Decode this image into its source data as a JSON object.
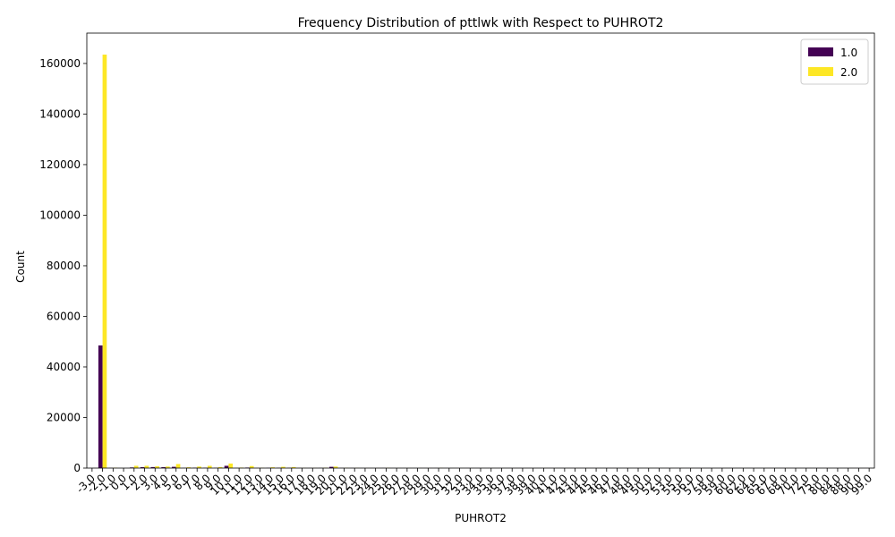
{
  "chart_data": {
    "type": "bar",
    "title": "Frequency Distribution of pttlwk with Respect to PUHROT2",
    "xlabel": "PUHROT2",
    "ylabel": "Count",
    "ylim": [
      0,
      172000
    ],
    "yticks": [
      0,
      20000,
      40000,
      60000,
      80000,
      100000,
      120000,
      140000,
      160000
    ],
    "legend_position": "upper-right",
    "categories": [
      "-3.0",
      "-2.0",
      "-1.0",
      "0.0",
      "1.0",
      "2.0",
      "3.0",
      "4.0",
      "5.0",
      "6.0",
      "7.0",
      "8.0",
      "9.0",
      "10.0",
      "11.0",
      "12.0",
      "13.0",
      "14.0",
      "15.0",
      "16.0",
      "17.0",
      "18.0",
      "19.0",
      "20.0",
      "21.0",
      "22.0",
      "23.0",
      "24.0",
      "25.0",
      "26.0",
      "27.0",
      "28.0",
      "29.0",
      "30.0",
      "31.0",
      "32.0",
      "33.0",
      "34.0",
      "35.0",
      "36.0",
      "37.0",
      "38.0",
      "39.0",
      "40.0",
      "41.0",
      "42.0",
      "43.0",
      "44.0",
      "45.0",
      "46.0",
      "47.0",
      "48.0",
      "49.0",
      "50.0",
      "52.0",
      "53.0",
      "55.0",
      "56.0",
      "57.0",
      "58.0",
      "59.0",
      "60.0",
      "62.0",
      "64.0",
      "65.0",
      "67.0",
      "68.0",
      "70.0",
      "72.0",
      "75.0",
      "80.0",
      "84.0",
      "88.0",
      "90.0",
      "99.0"
    ],
    "series": [
      {
        "name": "1.0",
        "color": "#440154",
        "values": [
          10,
          48500,
          50,
          0,
          250,
          350,
          400,
          350,
          500,
          60,
          150,
          120,
          80,
          900,
          40,
          200,
          20,
          80,
          100,
          80,
          20,
          20,
          40,
          500,
          30,
          20,
          10,
          10,
          30,
          10,
          10,
          10,
          10,
          20,
          5,
          5,
          5,
          5,
          5,
          5,
          5,
          5,
          5,
          10,
          5,
          5,
          5,
          5,
          5,
          5,
          5,
          5,
          5,
          10,
          5,
          5,
          5,
          5,
          5,
          5,
          5,
          5,
          5,
          5,
          5,
          5,
          5,
          5,
          5,
          5,
          5,
          5,
          5,
          5,
          5
        ]
      },
      {
        "name": "2.0",
        "color": "#fde725",
        "values": [
          30,
          163500,
          150,
          0,
          900,
          900,
          700,
          600,
          1600,
          300,
          600,
          900,
          400,
          1800,
          200,
          800,
          100,
          300,
          500,
          400,
          60,
          60,
          150,
          600,
          80,
          60,
          30,
          30,
          80,
          20,
          20,
          20,
          30,
          60,
          10,
          10,
          10,
          10,
          10,
          10,
          10,
          10,
          10,
          20,
          10,
          10,
          10,
          10,
          10,
          10,
          10,
          10,
          10,
          20,
          10,
          10,
          10,
          10,
          10,
          10,
          10,
          10,
          10,
          10,
          10,
          10,
          10,
          10,
          10,
          10,
          10,
          10,
          10,
          10,
          10
        ]
      }
    ]
  }
}
